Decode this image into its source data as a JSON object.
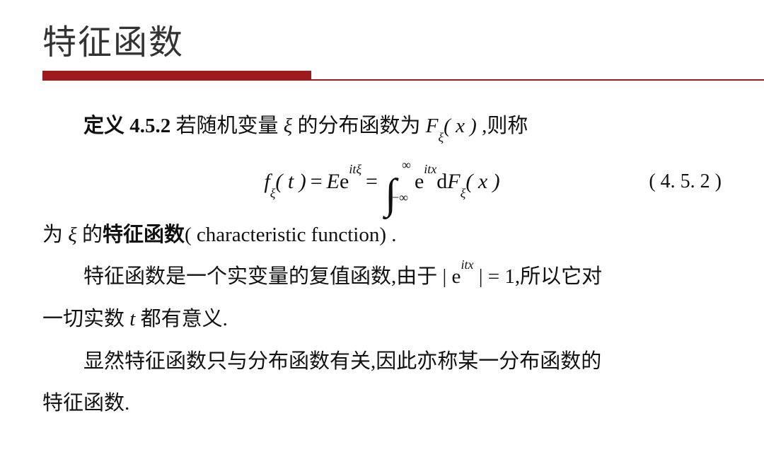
{
  "title": "特征函数",
  "definition": {
    "label": "定义 4.5.2",
    "text_before": "若随机变量 ",
    "xi": "ξ",
    "text_mid": " 的分布函数为 ",
    "F": "F",
    "F_sub": "ξ",
    "F_arg": "( x )",
    "text_after": " ,则称"
  },
  "equation": {
    "f": "f",
    "f_sub": "ξ",
    "f_arg": "( t )",
    "eq1": " = ",
    "E": "E",
    "e1": "e",
    "exp1": "itξ",
    "eq2": " = ",
    "int_upper": "∞",
    "int_lower": "−∞",
    "e2": "e",
    "exp2": "itx",
    "d": "d",
    "F2": "F",
    "F2_sub": "ξ",
    "F2_arg": "( x )",
    "number": "( 4. 5. 2 )"
  },
  "line2": {
    "pre": "为 ",
    "xi": "ξ",
    "mid": " 的",
    "bold": "特征函数",
    "paren": "( characteristic function) ."
  },
  "para1_a": "特征函数是一个实变量的复值函数,由于 | e",
  "para1_exp": "itx",
  "para1_b": " | = 1,所以它对",
  "para1_c": "一切实数 ",
  "para1_t": "t",
  "para1_d": " 都有意义.",
  "para2_a": "显然特征函数只与分布函数有关,因此亦称某一分布函数的",
  "para2_b": "特征函数.",
  "colors": {
    "accent": "#9e1b1b",
    "text": "#111111",
    "bg": "#ffffff"
  }
}
